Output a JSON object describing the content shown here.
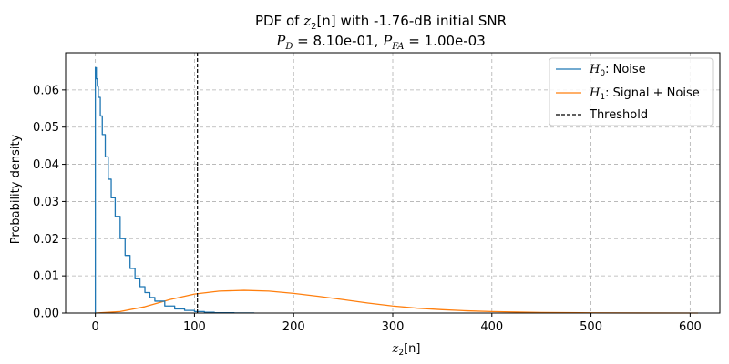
{
  "chart_data": {
    "type": "line",
    "title_prefix": "PDF of ",
    "title_var": "z",
    "title_sub": "2",
    "title_arg": "[n]",
    "title_suffix": " with -1.76-dB initial SNR",
    "subtitle": {
      "pd_label": "P",
      "pd_sub": "D",
      "pd_value": " =  8.10e-01, ",
      "pfa_label": "P",
      "pfa_sub": "FA",
      "pfa_value": " =  1.00e-03"
    },
    "xlabel": {
      "var": "z",
      "sub": "2",
      "arg": "[n]"
    },
    "ylabel": "Probability density",
    "xlim": [
      -30,
      630
    ],
    "ylim": [
      0,
      0.07
    ],
    "xticks": [
      0,
      100,
      200,
      300,
      400,
      500,
      600
    ],
    "yticks": [
      0.0,
      0.01,
      0.02,
      0.03,
      0.04,
      0.05,
      0.06
    ],
    "grid": true,
    "legend_position": "top-right",
    "threshold": 103,
    "series": [
      {
        "name": "Noise",
        "legend_symbol": "H",
        "legend_sub": "0",
        "color": "#1f77b4",
        "x": [
          0,
          1,
          2,
          3,
          5,
          7,
          10,
          13,
          16,
          20,
          25,
          30,
          35,
          40,
          45,
          50,
          55,
          60,
          70,
          80,
          90,
          100,
          110,
          120,
          140,
          160
        ],
        "y": [
          0.066,
          0.063,
          0.061,
          0.058,
          0.053,
          0.048,
          0.042,
          0.036,
          0.031,
          0.026,
          0.02,
          0.0155,
          0.012,
          0.0092,
          0.0071,
          0.0055,
          0.0042,
          0.0032,
          0.0019,
          0.0011,
          0.0007,
          0.0004,
          0.0002,
          0.0001,
          3e-05,
          0.0
        ]
      },
      {
        "name": "Signal + Noise",
        "legend_symbol": "H",
        "legend_sub": "1",
        "color": "#ff7f0e",
        "x": [
          0,
          25,
          50,
          75,
          100,
          125,
          150,
          175,
          200,
          225,
          250,
          275,
          300,
          325,
          350,
          375,
          400,
          450,
          500,
          550,
          608
        ],
        "y": [
          0.0,
          0.0004,
          0.0017,
          0.0036,
          0.0051,
          0.0059,
          0.0061,
          0.0059,
          0.0053,
          0.0045,
          0.0036,
          0.0027,
          0.0019,
          0.0013,
          0.0009,
          0.0006,
          0.0004,
          0.00015,
          5e-05,
          2e-05,
          0.0
        ]
      },
      {
        "name": "Threshold",
        "color": "#000000",
        "dashed": true
      }
    ]
  }
}
